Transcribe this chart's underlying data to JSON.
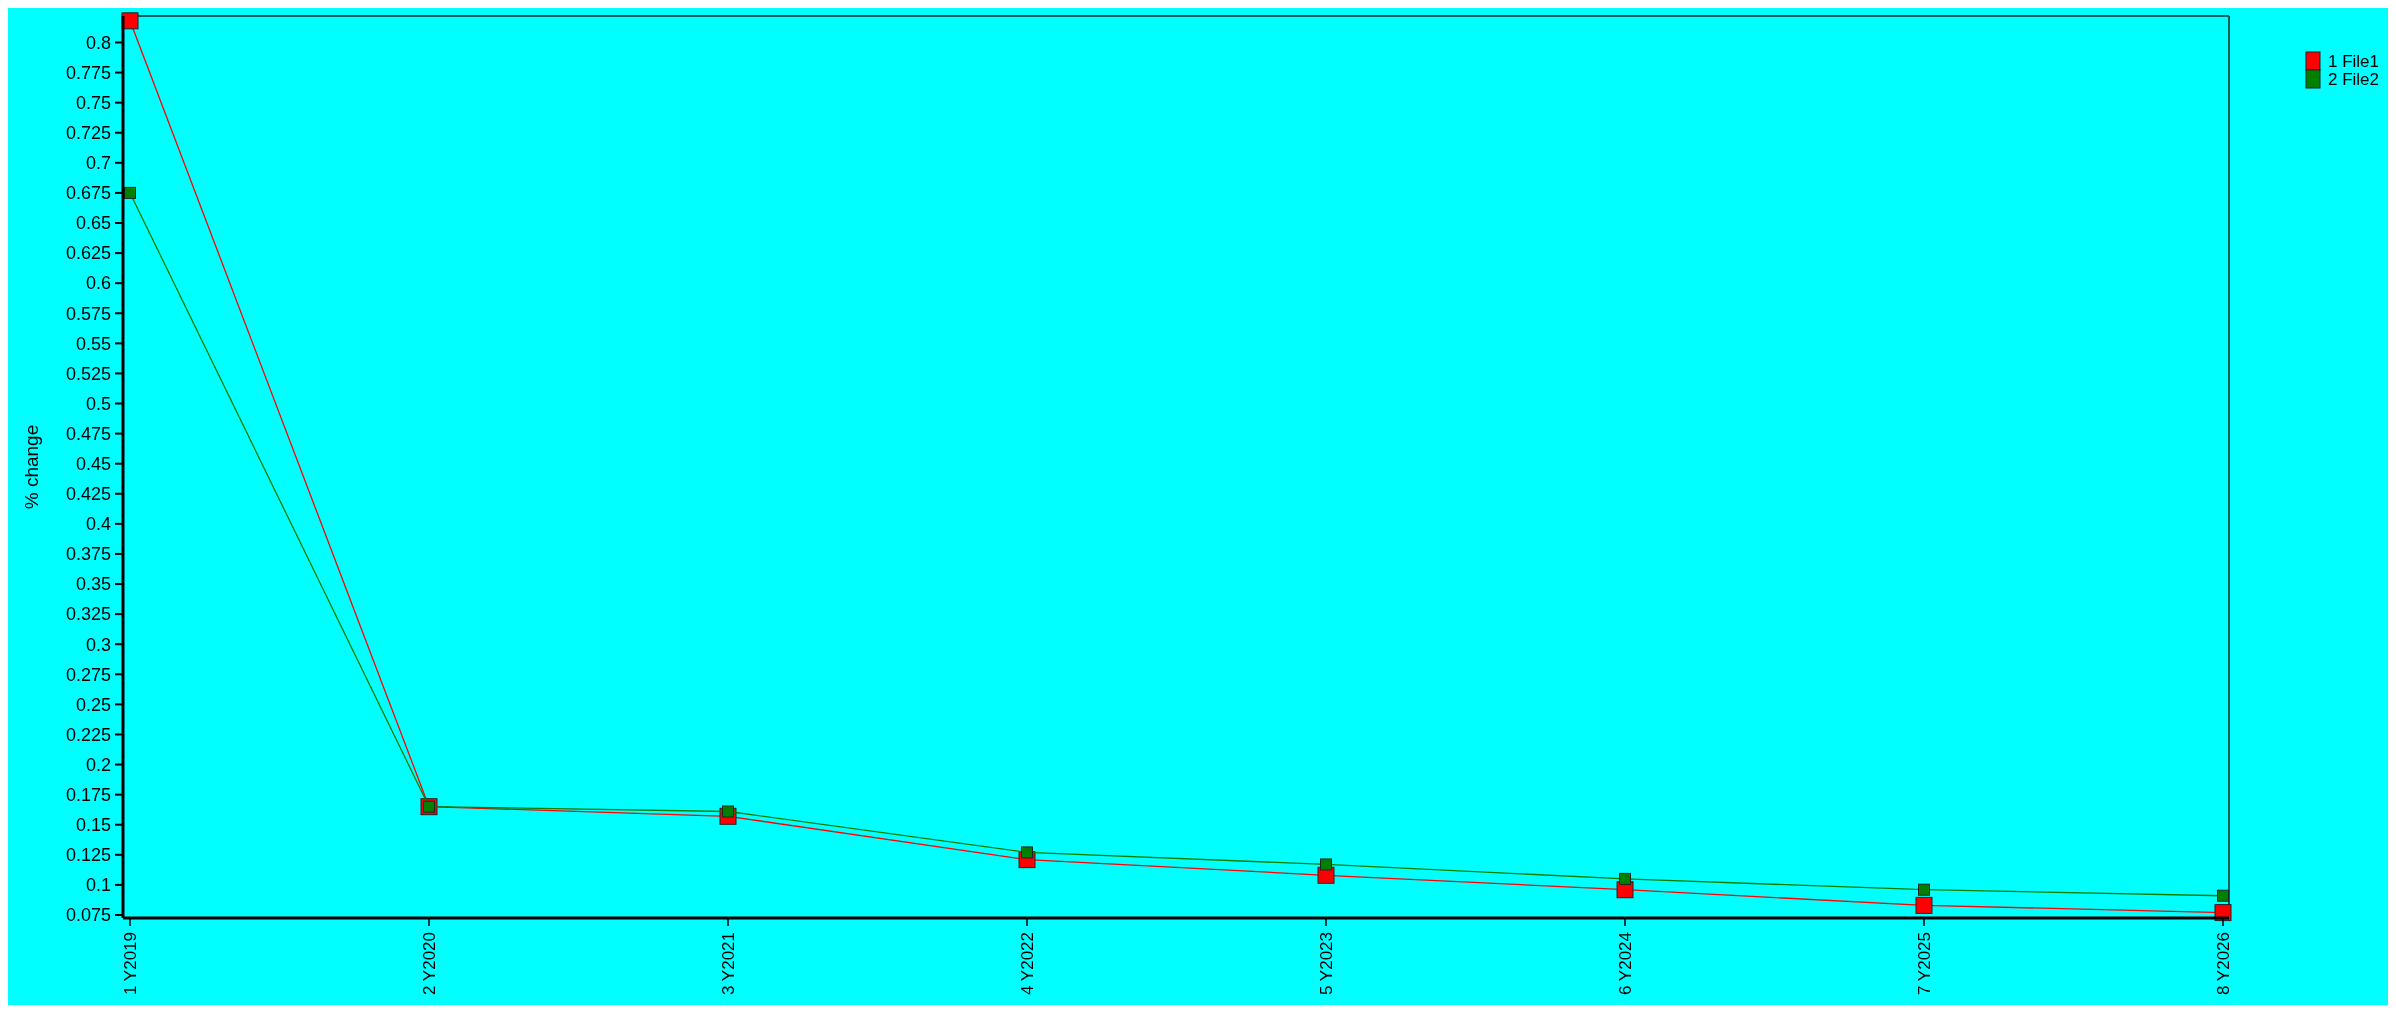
{
  "chart_data": {
    "type": "line",
    "ylabel": "% change",
    "categories": [
      "1 Y2019",
      "2 Y2020",
      "3 Y2021",
      "4 Y2022",
      "5 Y2023",
      "6 Y2024",
      "7 Y2025",
      "8 Y2026"
    ],
    "series": [
      {
        "name": "1 File1",
        "color": "#ff0000",
        "values": [
          0.818,
          0.165,
          0.157,
          0.121,
          0.108,
          0.096,
          0.083,
          0.077
        ]
      },
      {
        "name": "2 File2",
        "color": "#008000",
        "values": [
          0.675,
          0.165,
          0.161,
          0.127,
          0.117,
          0.105,
          0.096,
          0.091
        ]
      }
    ],
    "ylim": [
      0.0725,
      0.822
    ],
    "yticks": [
      0.075,
      0.1,
      0.125,
      0.15,
      0.175,
      0.2,
      0.225,
      0.25,
      0.275,
      0.3,
      0.325,
      0.35,
      0.375,
      0.4,
      0.425,
      0.45,
      0.475,
      0.5,
      0.525,
      0.55,
      0.575,
      0.6,
      0.625,
      0.65,
      0.675,
      0.7,
      0.725,
      0.75,
      0.775,
      0.8
    ],
    "grid": false,
    "legend": "top right",
    "marker": "square",
    "line_style": "solid"
  }
}
